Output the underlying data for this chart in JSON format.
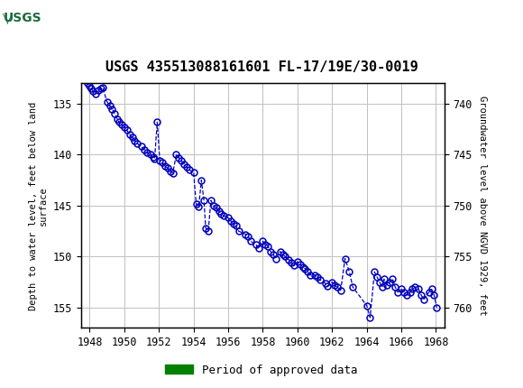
{
  "title": "USGS 435513088161601 FL-17/19E/30-0019",
  "ylabel_left": "Depth to water level, feet below land\nsurface",
  "ylabel_right": "Groundwater level above NGVD 1929, feet",
  "xlim": [
    1947.5,
    1968.5
  ],
  "ylim_left": [
    133.0,
    157.0
  ],
  "ylim_right": [
    738.0,
    762.0
  ],
  "yticks_left": [
    135,
    140,
    145,
    150,
    155
  ],
  "yticks_right": [
    740,
    745,
    750,
    755,
    760
  ],
  "xticks": [
    1948,
    1950,
    1952,
    1954,
    1956,
    1958,
    1960,
    1962,
    1964,
    1966,
    1968
  ],
  "header_color": "#1a6b3c",
  "line_color": "#0000BB",
  "marker_facecolor": "none",
  "marker_edgecolor": "#0000BB",
  "grid_color": "#c0c0c0",
  "legend_label": "Period of approved data",
  "legend_color": "#008000",
  "background_color": "#ffffff",
  "data_x": [
    1947.85,
    1948.0,
    1948.1,
    1948.2,
    1948.35,
    1948.5,
    1948.65,
    1948.75,
    1949.0,
    1949.15,
    1949.3,
    1949.45,
    1949.6,
    1949.7,
    1949.85,
    1950.0,
    1950.15,
    1950.3,
    1950.45,
    1950.6,
    1950.75,
    1951.0,
    1951.15,
    1951.3,
    1951.5,
    1951.65,
    1951.75,
    1951.9,
    1952.05,
    1952.2,
    1952.35,
    1952.5,
    1952.65,
    1952.8,
    1953.0,
    1953.15,
    1953.3,
    1953.45,
    1953.6,
    1953.75,
    1954.0,
    1954.15,
    1954.3,
    1954.45,
    1954.6,
    1954.7,
    1954.85,
    1955.0,
    1955.15,
    1955.3,
    1955.45,
    1955.6,
    1955.75,
    1956.0,
    1956.15,
    1956.3,
    1956.45,
    1956.6,
    1957.0,
    1957.15,
    1957.3,
    1957.6,
    1957.75,
    1958.0,
    1958.15,
    1958.3,
    1958.45,
    1958.6,
    1958.75,
    1959.0,
    1959.15,
    1959.3,
    1959.5,
    1959.65,
    1959.8,
    1960.0,
    1960.15,
    1960.3,
    1960.45,
    1960.6,
    1960.75,
    1961.0,
    1961.15,
    1961.3,
    1961.6,
    1961.75,
    1962.0,
    1962.15,
    1962.3,
    1962.5,
    1962.75,
    1963.0,
    1963.2,
    1964.0,
    1964.2,
    1964.45,
    1964.6,
    1964.75,
    1964.9,
    1965.0,
    1965.15,
    1965.3,
    1965.5,
    1965.65,
    1965.8,
    1966.0,
    1966.15,
    1966.3,
    1966.5,
    1966.65,
    1966.8,
    1967.0,
    1967.15,
    1967.3,
    1967.6,
    1967.75,
    1967.9,
    1968.05
  ],
  "data_y": [
    133.0,
    133.2,
    133.5,
    133.8,
    134.0,
    133.7,
    133.5,
    133.4,
    134.8,
    135.2,
    135.5,
    136.0,
    136.5,
    136.8,
    137.0,
    137.3,
    137.6,
    138.0,
    138.3,
    138.6,
    138.9,
    139.2,
    139.5,
    139.8,
    140.0,
    140.2,
    140.4,
    136.8,
    140.6,
    140.8,
    141.1,
    141.3,
    141.6,
    141.8,
    140.0,
    140.3,
    140.6,
    140.9,
    141.2,
    141.5,
    141.7,
    144.8,
    145.1,
    142.5,
    144.5,
    147.2,
    147.5,
    144.5,
    145.0,
    145.2,
    145.5,
    145.8,
    146.0,
    146.2,
    146.5,
    146.8,
    147.0,
    147.5,
    147.8,
    148.0,
    148.5,
    148.8,
    149.2,
    148.5,
    148.8,
    149.0,
    149.5,
    149.8,
    150.2,
    149.5,
    149.8,
    150.0,
    150.3,
    150.6,
    150.9,
    150.5,
    150.8,
    151.0,
    151.2,
    151.5,
    151.8,
    151.8,
    152.0,
    152.3,
    152.6,
    152.9,
    152.5,
    152.8,
    153.0,
    153.3,
    150.2,
    151.5,
    153.0,
    154.8,
    156.0,
    151.5,
    152.0,
    152.5,
    153.0,
    152.2,
    152.8,
    152.5,
    152.2,
    153.0,
    153.5,
    153.2,
    153.5,
    153.8,
    153.5,
    153.2,
    153.0,
    153.2,
    153.8,
    154.2,
    153.5,
    153.2,
    153.8,
    155.0
  ]
}
